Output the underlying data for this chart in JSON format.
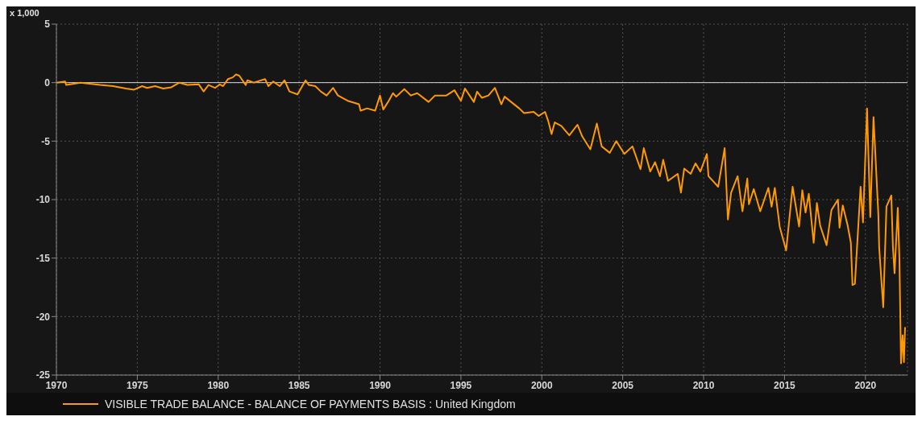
{
  "chart_data": {
    "type": "line",
    "ylabel": "x 1,000",
    "xlim": [
      1970,
      2022.6
    ],
    "xticks": [
      1970,
      1975,
      1980,
      1985,
      1990,
      1995,
      2000,
      2005,
      2010,
      2015,
      2020
    ],
    "ylim": [
      -25,
      5
    ],
    "yticks": [
      -25,
      -20,
      -15,
      -10,
      -5,
      0,
      5
    ],
    "grid": true,
    "legend": "bottom",
    "marker": "none",
    "line_style": "solid",
    "ref_lines": [
      {
        "axis": "y",
        "value": 0,
        "color": "#d9d9d9"
      }
    ],
    "series": [
      {
        "name": "VISIBLE TRADE BALANCE - BALANCE OF PAYMENTS BASIS : United Kingdom",
        "color": "#ff9900",
        "x": [
          1970.0,
          1970.54,
          1970.6,
          1971.5,
          1972.7,
          1973.5,
          1974.3,
          1974.8,
          1975.3,
          1975.6,
          1976.1,
          1976.6,
          1977.1,
          1977.6,
          1978.1,
          1978.8,
          1979.1,
          1979.4,
          1979.8,
          1980.1,
          1980.3,
          1980.6,
          1980.9,
          1981.1,
          1981.3,
          1981.7,
          1981.8,
          1982.2,
          1982.9,
          1983.1,
          1983.4,
          1983.8,
          1984.1,
          1984.4,
          1984.9,
          1985.4,
          1985.6,
          1986.0,
          1986.35,
          1986.7,
          1987.1,
          1987.4,
          1988.0,
          1988.7,
          1988.8,
          1989.2,
          1989.7,
          1990.0,
          1990.2,
          1990.5,
          1990.8,
          1991.0,
          1991.5,
          1991.9,
          1992.3,
          1993.0,
          1993.4,
          1994.1,
          1994.6,
          1995.0,
          1995.25,
          1995.8,
          1996.0,
          1996.3,
          1996.7,
          1997.1,
          1997.5,
          1997.7,
          1998.1,
          1998.6,
          1998.9,
          1999.5,
          1999.8,
          2000.2,
          2000.4,
          2000.6,
          2000.8,
          2001.2,
          2001.7,
          2002.2,
          2002.5,
          2003.0,
          2003.4,
          2003.7,
          2004.2,
          2004.6,
          2005.1,
          2005.6,
          2006.1,
          2006.3,
          2006.7,
          2007.0,
          2007.3,
          2007.5,
          2007.8,
          2008.4,
          2008.6,
          2008.8,
          2009.2,
          2009.5,
          2009.8,
          2010.2,
          2010.3,
          2010.9,
          2011.3,
          2011.5,
          2011.7,
          2012.1,
          2012.4,
          2012.7,
          2012.8,
          2013.1,
          2013.5,
          2014.0,
          2014.2,
          2014.4,
          2014.7,
          2015.1,
          2015.5,
          2015.9,
          2016.1,
          2016.3,
          2016.5,
          2016.8,
          2017.0,
          2017.2,
          2017.6,
          2017.9,
          2018.3,
          2018.4,
          2018.6,
          2018.9,
          2019.1,
          2019.2,
          2019.35,
          2019.7,
          2019.85,
          2020.1,
          2020.3,
          2020.5,
          2020.8,
          2020.85,
          2021.1,
          2021.3,
          2021.6,
          2021.7,
          2021.8,
          2022.0,
          2022.1,
          2022.2,
          2022.3,
          2022.38,
          2022.45
        ],
        "values": [
          0.0,
          0.1,
          -0.2,
          0.0,
          -0.2,
          -0.3,
          -0.5,
          -0.6,
          -0.3,
          -0.45,
          -0.3,
          -0.5,
          -0.4,
          0.0,
          -0.2,
          -0.15,
          -0.75,
          -0.2,
          -0.45,
          -0.15,
          -0.3,
          0.3,
          0.45,
          0.7,
          0.6,
          -0.2,
          0.2,
          0.0,
          0.3,
          -0.3,
          0.1,
          -0.3,
          0.2,
          -0.75,
          -1.0,
          0.2,
          -0.2,
          -0.3,
          -0.77,
          -1.1,
          -0.45,
          -1.1,
          -1.55,
          -1.85,
          -2.4,
          -2.2,
          -2.4,
          -1.1,
          -2.3,
          -1.65,
          -0.9,
          -1.2,
          -0.55,
          -1.1,
          -0.9,
          -1.65,
          -1.1,
          -1.1,
          -0.65,
          -1.55,
          -0.5,
          -1.65,
          -0.77,
          -1.3,
          -1.1,
          -0.45,
          -1.85,
          -1.2,
          -1.65,
          -2.2,
          -2.6,
          -2.5,
          -2.85,
          -2.5,
          -3.3,
          -4.4,
          -3.4,
          -3.7,
          -4.5,
          -3.6,
          -4.6,
          -5.7,
          -3.5,
          -5.45,
          -6.0,
          -5.0,
          -6.1,
          -5.45,
          -7.4,
          -5.6,
          -7.6,
          -6.8,
          -8.0,
          -6.6,
          -8.4,
          -7.8,
          -9.4,
          -7.35,
          -7.8,
          -6.9,
          -7.6,
          -6.1,
          -8.0,
          -8.9,
          -5.6,
          -11.7,
          -9.4,
          -8.0,
          -11.0,
          -8.2,
          -10.4,
          -9.1,
          -11.0,
          -9.0,
          -10.6,
          -9.0,
          -12.3,
          -14.35,
          -8.9,
          -12.3,
          -9.2,
          -11.1,
          -9.5,
          -13.7,
          -10.3,
          -12.2,
          -13.9,
          -10.9,
          -10.0,
          -12.4,
          -10.5,
          -12.2,
          -13.7,
          -17.3,
          -17.2,
          -8.9,
          -11.95,
          -2.2,
          -11.5,
          -2.95,
          -11.3,
          -14.1,
          -19.2,
          -10.6,
          -9.65,
          -14.1,
          -16.3,
          -10.7,
          -15.0,
          -24.0,
          -21.6,
          -23.9,
          -20.9
        ]
      }
    ]
  }
}
